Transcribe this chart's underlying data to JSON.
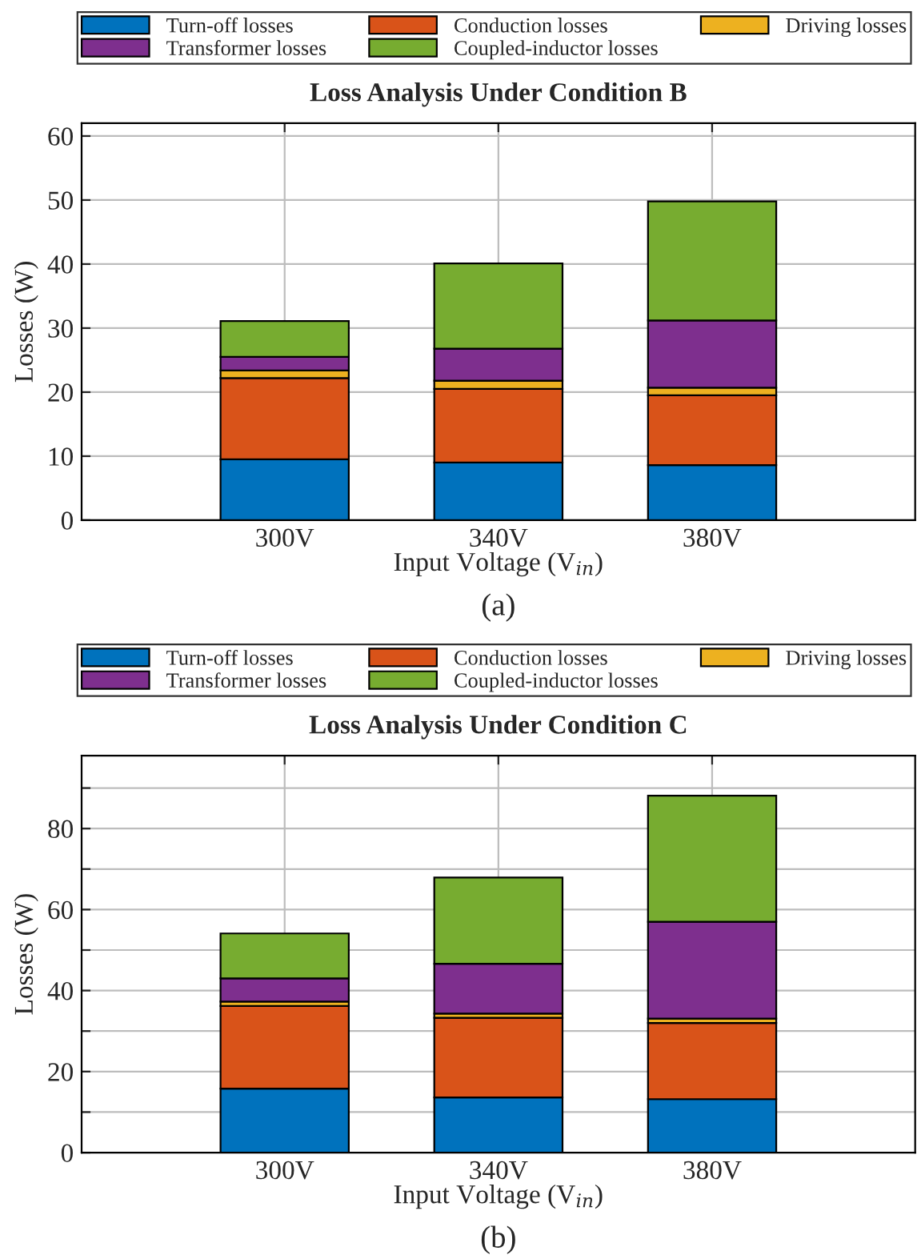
{
  "chart_data": [
    {
      "type": "bar",
      "stacked": true,
      "title": "Loss Analysis Under Condition B",
      "xlabel": "Input Voltage (V$_{in}$)",
      "ylabel": "Losses (W)",
      "categories": [
        "300V",
        "340V",
        "380V"
      ],
      "series": [
        {
          "name": "Turn-off losses",
          "color": "#0072bd",
          "values": [
            9.5,
            9.0,
            8.6
          ]
        },
        {
          "name": "Conduction losses",
          "color": "#d95319",
          "values": [
            12.7,
            11.5,
            10.9
          ]
        },
        {
          "name": "Driving losses",
          "color": "#edb120",
          "values": [
            1.2,
            1.3,
            1.2
          ]
        },
        {
          "name": "Transformer losses",
          "color": "#7e2f8e",
          "values": [
            2.1,
            5.0,
            10.5
          ]
        },
        {
          "name": "Coupled-inductor losses",
          "color": "#77ac30",
          "values": [
            5.6,
            13.3,
            18.6
          ]
        }
      ],
      "ylim": [
        0,
        62
      ],
      "yticks": [
        0,
        10,
        20,
        30,
        40,
        50,
        60
      ],
      "grid": true,
      "legend": "top",
      "annotations": [
        "(a)"
      ]
    },
    {
      "type": "bar",
      "stacked": true,
      "title": "Loss Analysis Under Condition C",
      "xlabel": "Input Voltage (V$_{in}$)",
      "ylabel": "Losses (W)",
      "categories": [
        "300V",
        "340V",
        "380V"
      ],
      "series": [
        {
          "name": "Turn-off losses",
          "color": "#0072bd",
          "values": [
            15.8,
            13.6,
            13.2
          ]
        },
        {
          "name": "Conduction losses",
          "color": "#d95319",
          "values": [
            20.4,
            19.7,
            18.8
          ]
        },
        {
          "name": "Driving losses",
          "color": "#edb120",
          "values": [
            1.1,
            1.0,
            1.1
          ]
        },
        {
          "name": "Transformer losses",
          "color": "#7e2f8e",
          "values": [
            5.7,
            12.3,
            23.9
          ]
        },
        {
          "name": "Coupled-inductor losses",
          "color": "#77ac30",
          "values": [
            11.1,
            21.3,
            31.1
          ]
        }
      ],
      "ylim": [
        0,
        98
      ],
      "yticks": [
        0,
        {
          "value": 10,
          "label": null
        },
        20,
        {
          "value": 30,
          "label": null
        },
        40,
        {
          "value": 50,
          "label": null
        },
        60,
        {
          "value": 70,
          "label": null
        },
        80,
        {
          "value": 90,
          "label": null
        }
      ],
      "grid": true,
      "legend": "top",
      "annotations": [
        "(b)"
      ]
    }
  ]
}
